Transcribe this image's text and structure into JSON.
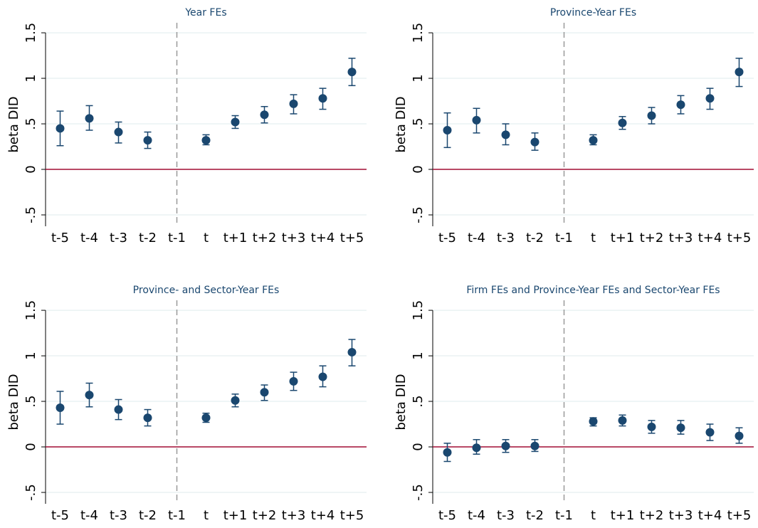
{
  "chart_data": [
    {
      "type": "errorbar",
      "title": "Year FEs",
      "ylabel": "beta DID",
      "categories": [
        "t-5",
        "t-4",
        "t-3",
        "t-2",
        "t-1",
        "t",
        "t+1",
        "t+2",
        "t+3",
        "t+4",
        "t+5"
      ],
      "values": [
        0.45,
        0.56,
        0.41,
        0.32,
        null,
        0.32,
        0.52,
        0.6,
        0.72,
        0.78,
        1.07
      ],
      "ci_low": [
        0.26,
        0.43,
        0.29,
        0.23,
        null,
        0.27,
        0.45,
        0.51,
        0.61,
        0.66,
        0.92
      ],
      "ci_high": [
        0.64,
        0.7,
        0.52,
        0.41,
        null,
        0.38,
        0.59,
        0.69,
        0.82,
        0.89,
        1.22
      ],
      "color": "#1a476f",
      "ylim": [
        -0.625,
        1.61
      ],
      "yticks": [
        {
          "value": -0.5,
          "label": "-.5"
        },
        0,
        {
          "value": 0.5,
          "label": ".5"
        },
        1,
        {
          "value": 1.5,
          "label": "1.5"
        }
      ],
      "grid": true,
      "hline": 0,
      "hline_color": "#a50f36",
      "vline_at": "t-1"
    },
    {
      "type": "errorbar",
      "title": "Province-Year FEs",
      "ylabel": "beta DID",
      "categories": [
        "t-5",
        "t-4",
        "t-3",
        "t-2",
        "t-1",
        "t",
        "t+1",
        "t+2",
        "t+3",
        "t+4",
        "t+5"
      ],
      "values": [
        0.43,
        0.54,
        0.38,
        0.3,
        null,
        0.32,
        0.51,
        0.59,
        0.71,
        0.78,
        1.07
      ],
      "ci_low": [
        0.24,
        0.4,
        0.27,
        0.21,
        null,
        0.27,
        0.44,
        0.5,
        0.61,
        0.66,
        0.91
      ],
      "ci_high": [
        0.62,
        0.67,
        0.5,
        0.4,
        null,
        0.38,
        0.58,
        0.68,
        0.81,
        0.89,
        1.22
      ],
      "color": "#1a476f",
      "ylim": [
        -0.625,
        1.61
      ],
      "yticks": [
        {
          "value": -0.5,
          "label": "-.5"
        },
        0,
        {
          "value": 0.5,
          "label": ".5"
        },
        1,
        {
          "value": 1.5,
          "label": "1.5"
        }
      ],
      "grid": true,
      "hline": 0,
      "hline_color": "#a50f36",
      "vline_at": "t-1"
    },
    {
      "type": "errorbar",
      "title": "Province- and Sector-Year FEs",
      "ylabel": "beta DID",
      "categories": [
        "t-5",
        "t-4",
        "t-3",
        "t-2",
        "t-1",
        "t",
        "t+1",
        "t+2",
        "t+3",
        "t+4",
        "t+5"
      ],
      "values": [
        0.43,
        0.57,
        0.41,
        0.32,
        null,
        0.32,
        0.51,
        0.6,
        0.72,
        0.77,
        1.04
      ],
      "ci_low": [
        0.25,
        0.44,
        0.3,
        0.23,
        null,
        0.27,
        0.44,
        0.51,
        0.62,
        0.66,
        0.89
      ],
      "ci_high": [
        0.61,
        0.7,
        0.52,
        0.41,
        null,
        0.37,
        0.58,
        0.68,
        0.82,
        0.89,
        1.18
      ],
      "color": "#1a476f",
      "ylim": [
        -0.625,
        1.61
      ],
      "yticks": [
        {
          "value": -0.5,
          "label": "-.5"
        },
        0,
        {
          "value": 0.5,
          "label": ".5"
        },
        1,
        {
          "value": 1.5,
          "label": "1.5"
        }
      ],
      "grid": true,
      "hline": 0,
      "hline_color": "#a50f36",
      "vline_at": "t-1"
    },
    {
      "type": "errorbar",
      "title": "Firm FEs and Province-Year FEs and Sector-Year FEs",
      "ylabel": "beta DID",
      "categories": [
        "t-5",
        "t-4",
        "t-3",
        "t-2",
        "t-1",
        "t",
        "t+1",
        "t+2",
        "t+3",
        "t+4",
        "t+5"
      ],
      "values": [
        -0.06,
        -0.01,
        0.01,
        0.01,
        null,
        0.28,
        0.29,
        0.22,
        0.21,
        0.16,
        0.12
      ],
      "ci_low": [
        -0.16,
        -0.08,
        -0.06,
        -0.05,
        null,
        0.23,
        0.23,
        0.15,
        0.14,
        0.07,
        0.04
      ],
      "ci_high": [
        0.04,
        0.08,
        0.08,
        0.08,
        null,
        0.32,
        0.35,
        0.29,
        0.29,
        0.25,
        0.21
      ],
      "color": "#1a476f",
      "ylim": [
        -0.625,
        1.61
      ],
      "yticks": [
        {
          "value": -0.5,
          "label": "-.5"
        },
        0,
        {
          "value": 0.5,
          "label": ".5"
        },
        1,
        {
          "value": 1.5,
          "label": "1.5"
        }
      ],
      "grid": true,
      "hline": 0,
      "hline_color": "#a50f36",
      "vline_at": "t-1"
    }
  ]
}
